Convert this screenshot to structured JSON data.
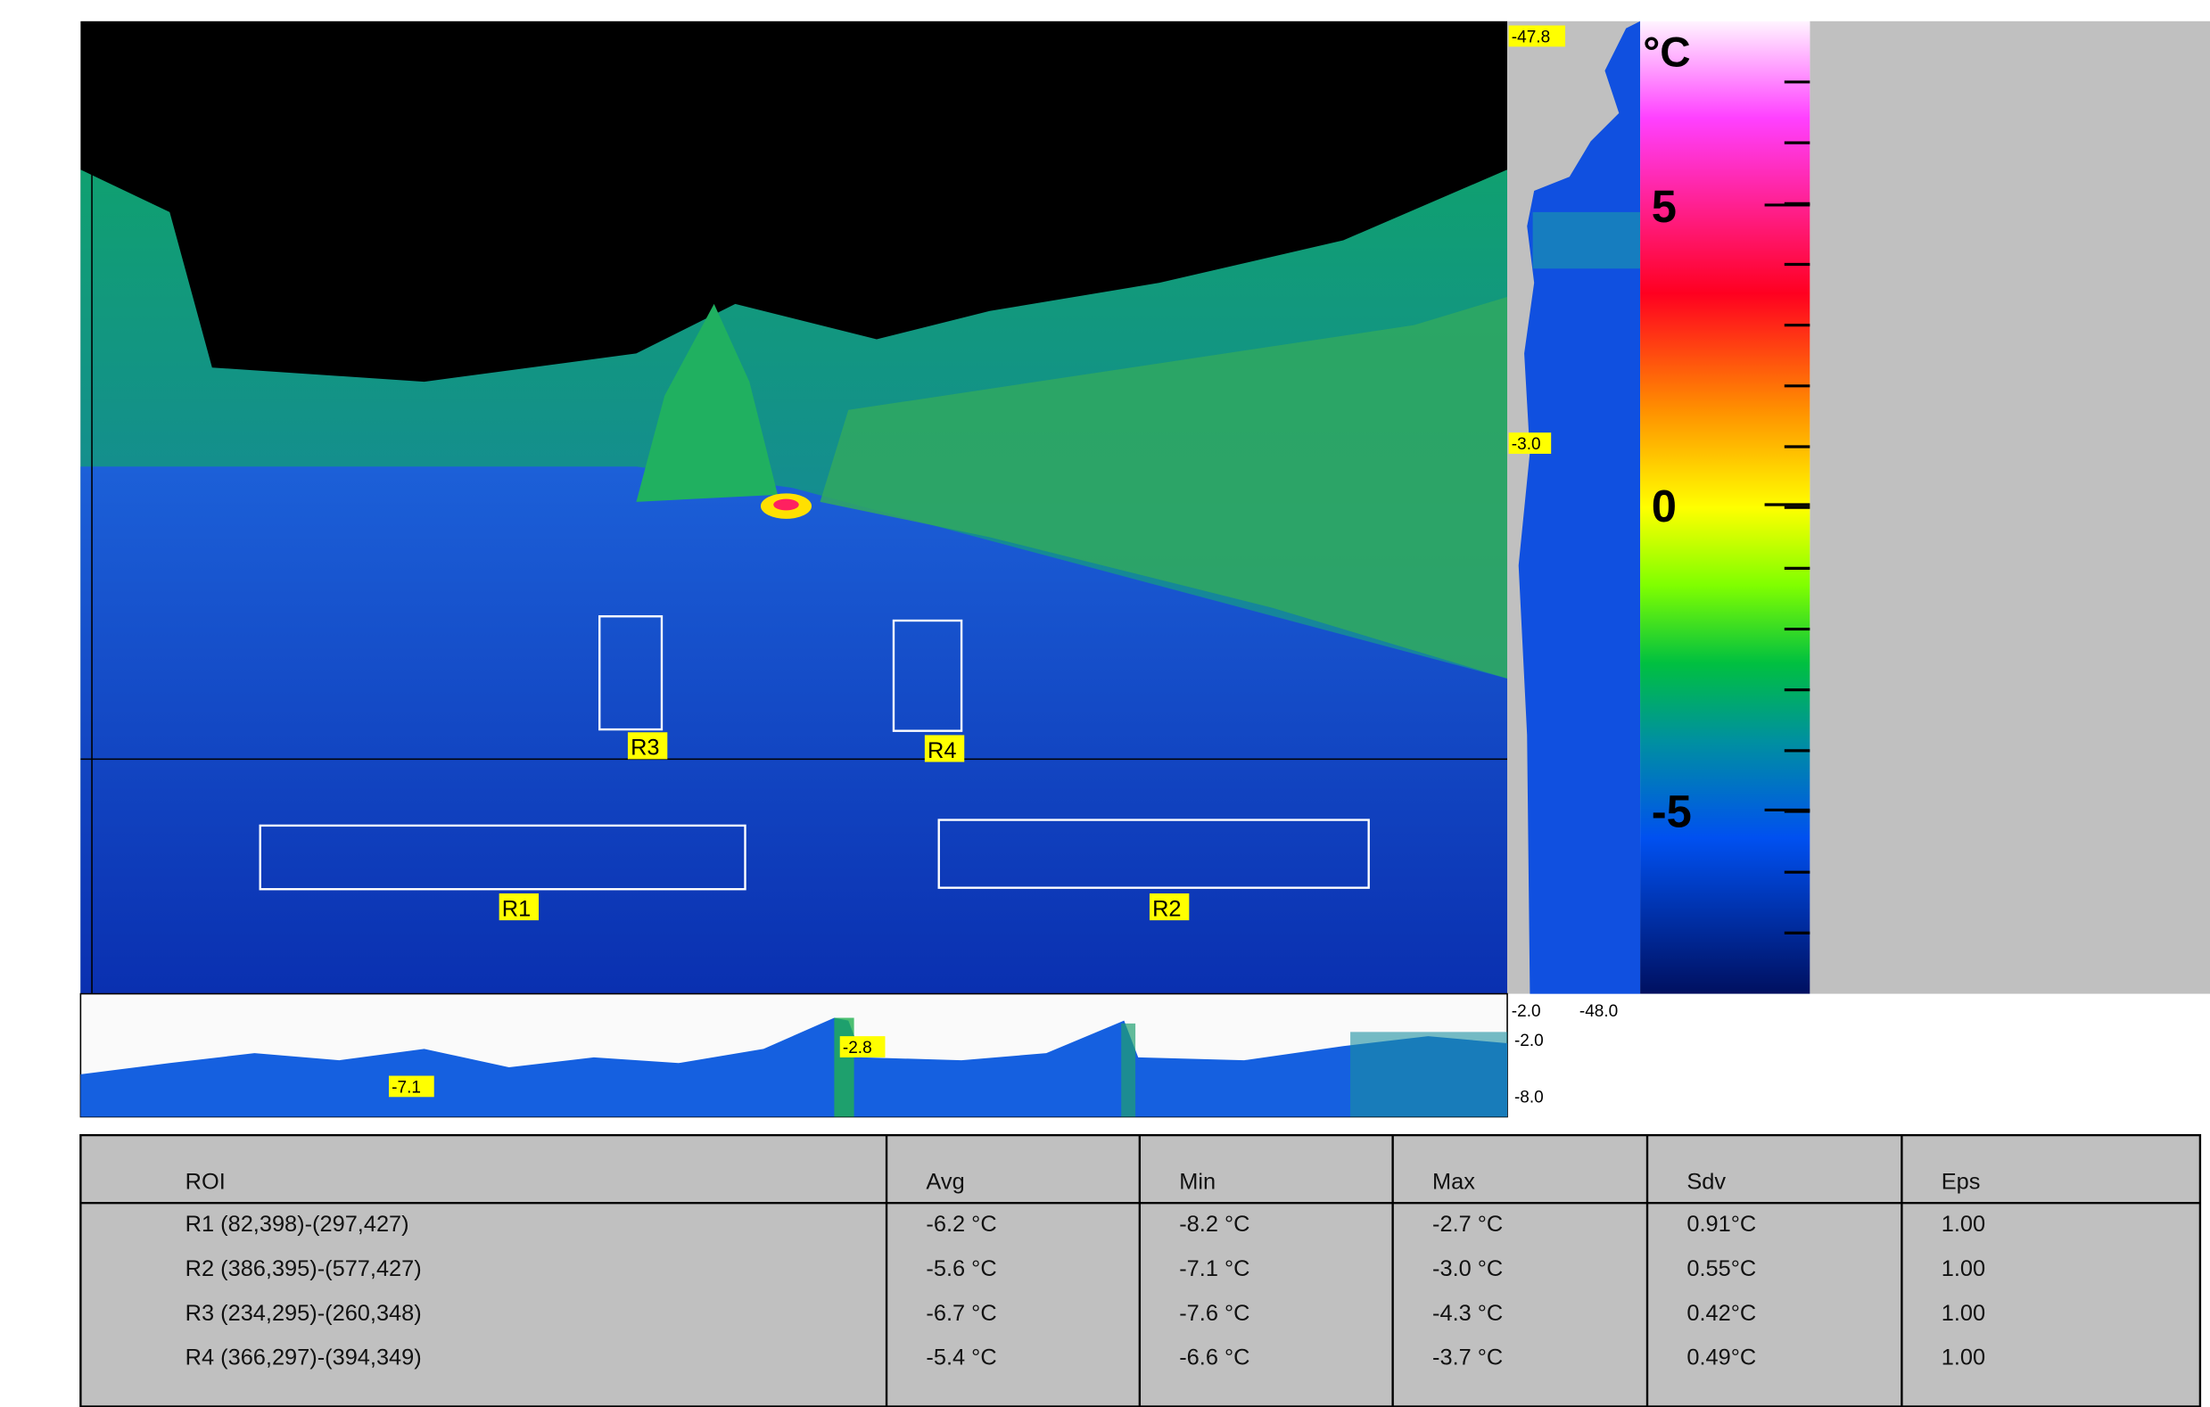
{
  "thermal_view": {
    "rois": [
      {
        "label": "R1"
      },
      {
        "label": "R2"
      },
      {
        "label": "R3"
      },
      {
        "label": "R4"
      }
    ],
    "vertical_profile": {
      "top_label": "-47.8",
      "marker_label": "-3.0"
    },
    "horizontal_profile": {
      "marker_max": "-2.8",
      "marker_min": "-7.1",
      "range_labels": [
        "-2.0",
        "-48.0",
        "-2.0",
        "-8.0"
      ]
    },
    "color_scale": {
      "unit": "°C",
      "labels": [
        "5",
        "0",
        "-5"
      ]
    }
  },
  "table": {
    "header": [
      "ROI",
      "Avg",
      "Min",
      "Max",
      "Sdv",
      "Eps"
    ],
    "rows": [
      [
        "R1 (82,398)-(297,427)",
        "-6.2 °C",
        "-8.2 °C",
        "-2.7 °C",
        "0.91°C",
        "1.00"
      ],
      [
        "R2 (386,395)-(577,427)",
        "-5.6 °C",
        "-7.1 °C",
        "-3.0 °C",
        "0.55°C",
        "1.00"
      ],
      [
        "R3 (234,295)-(260,348)",
        "-6.7 °C",
        "-7.6 °C",
        "-4.3 °C",
        "0.42°C",
        "1.00"
      ],
      [
        "R4 (366,297)-(394,349)",
        "-5.4 °C",
        "-6.6 °C",
        "-3.7 °C",
        "0.49°C",
        "1.00"
      ]
    ]
  }
}
